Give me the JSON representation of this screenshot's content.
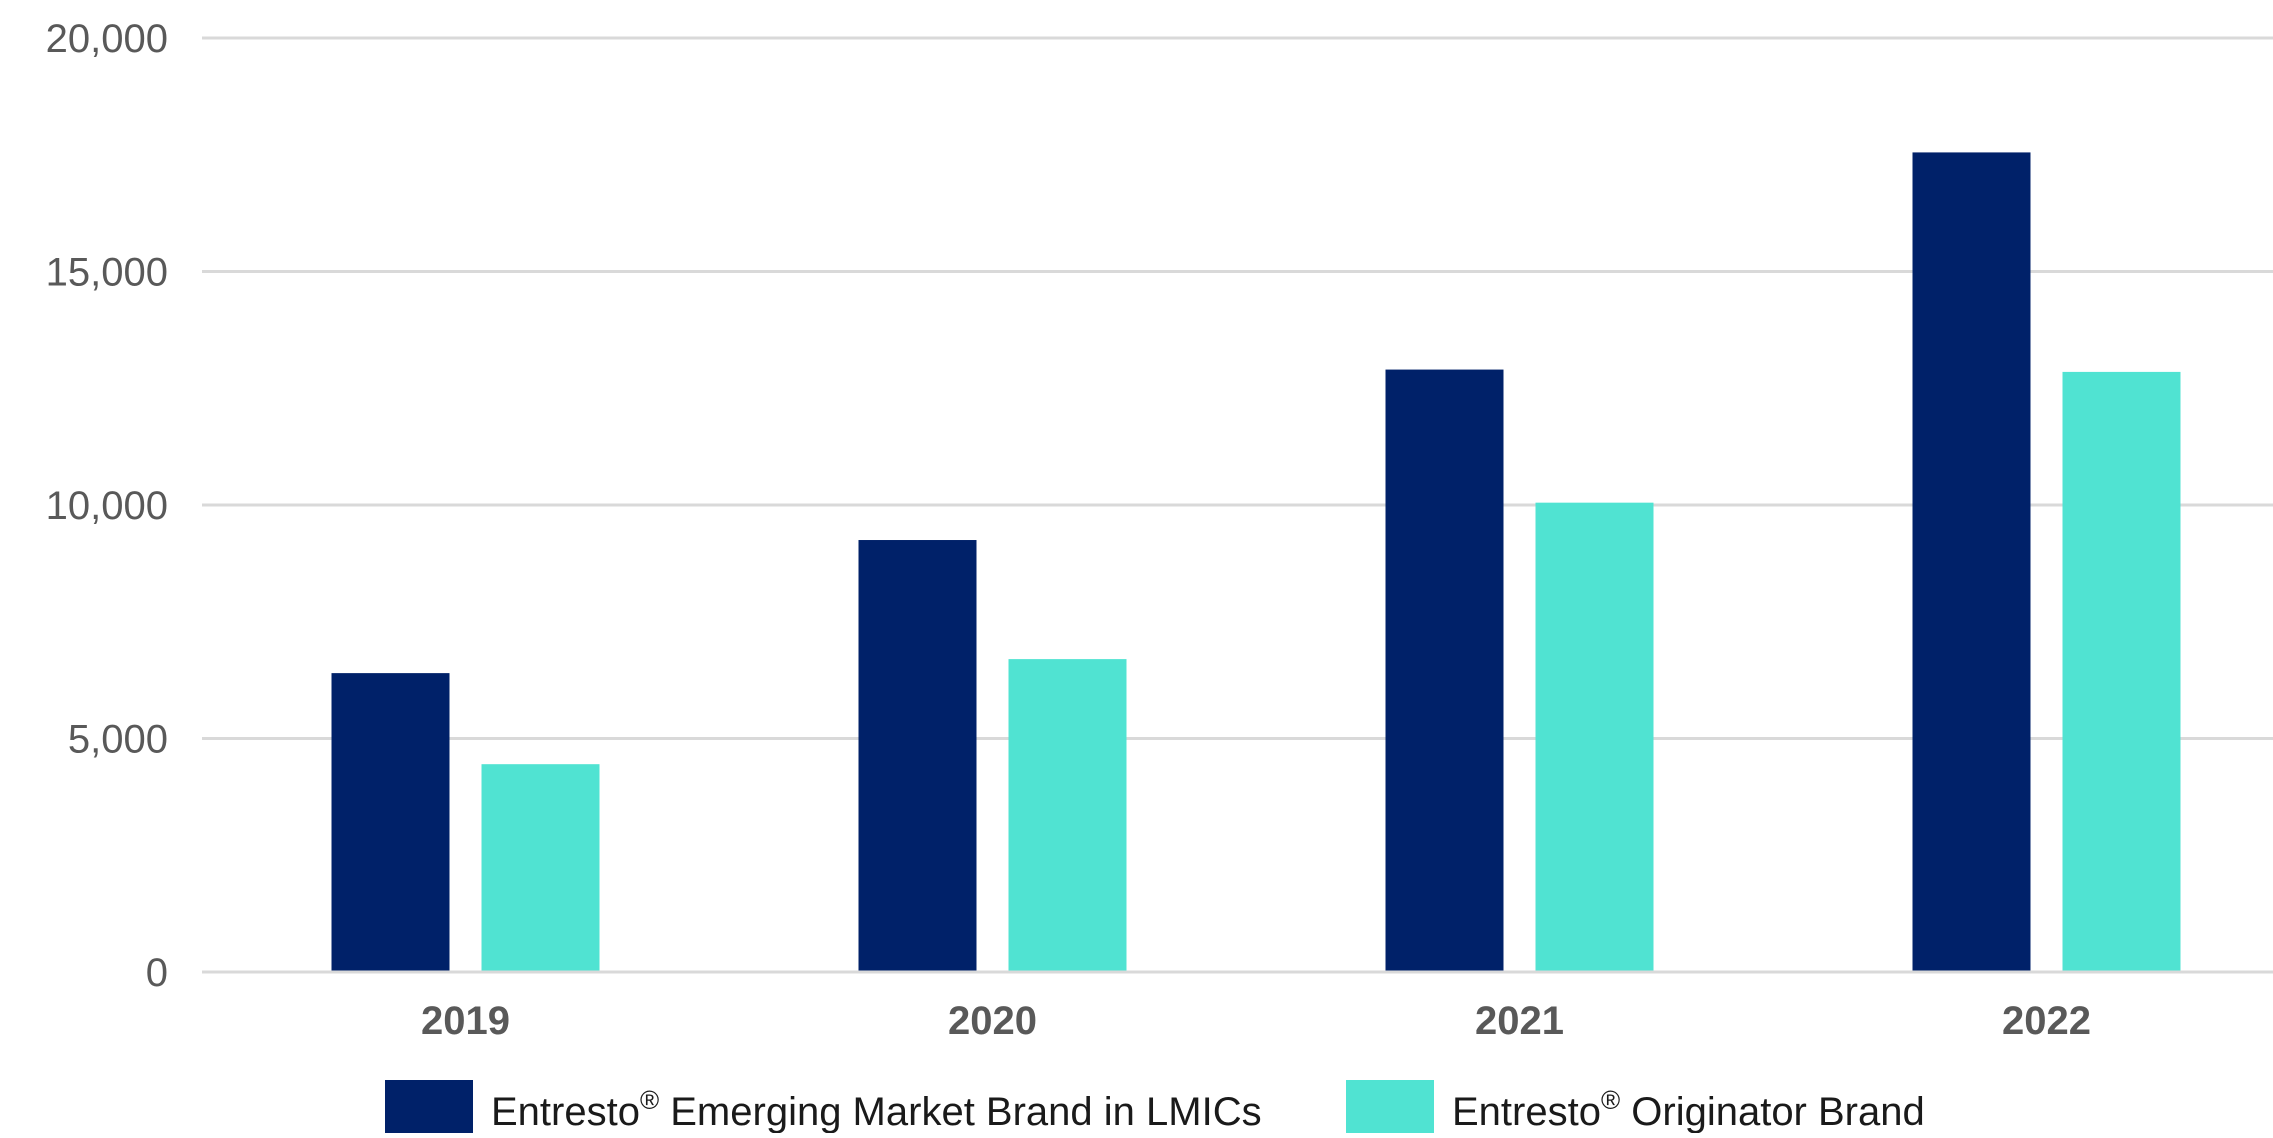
{
  "chart_data": {
    "type": "bar",
    "categories": [
      "2019",
      "2020",
      "2021",
      "2022"
    ],
    "series": [
      {
        "name": "Entresto® Emerging Market Brand in LMICs",
        "name_base": "Entresto",
        "name_sup": "®",
        "name_rest": " Emerging Market Brand in LMICs",
        "color": "#002169",
        "values": [
          6400,
          9250,
          12900,
          17550
        ]
      },
      {
        "name": "Entresto® Originator Brand",
        "name_base": "Entresto",
        "name_sup": "®",
        "name_rest": " Originator Brand",
        "color": "#50E3D2",
        "values": [
          4450,
          6700,
          10050,
          12850
        ]
      }
    ],
    "title": "",
    "xlabel": "",
    "ylabel": "",
    "ylim": [
      0,
      20000
    ],
    "y_ticks": [
      0,
      5000,
      10000,
      15000,
      20000
    ],
    "y_tick_labels": [
      "0",
      "5,000",
      "10,000",
      "15,000",
      "20,000"
    ],
    "grid": true,
    "grid_color": "#d9d9d9",
    "legend_position": "bottom"
  }
}
